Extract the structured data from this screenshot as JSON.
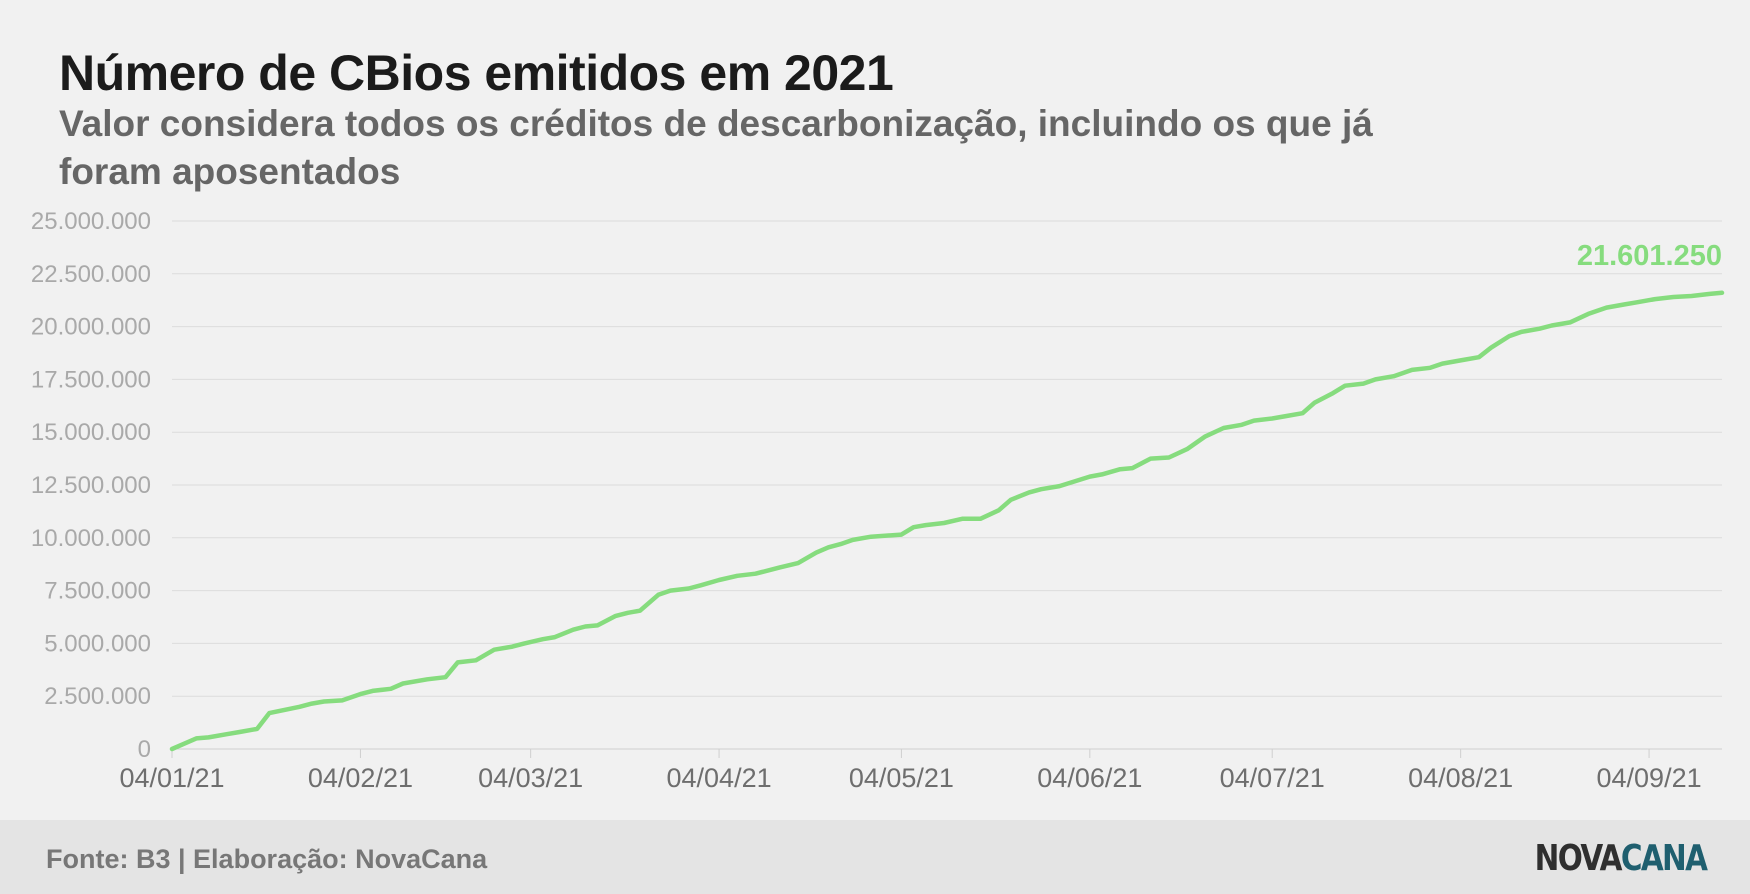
{
  "header": {
    "title": "Número de CBios emitidos em 2021",
    "subtitle": "Valor considera todos os créditos de descarbonização, incluindo os que já foram aposentados"
  },
  "footer": {
    "source": "Fonte: B3 | Elaboração: NovaCana",
    "logo_part1": "NOVA",
    "logo_part2": "CANA"
  },
  "colors": {
    "line": "#86dc7e",
    "grid": "#dcdcdc",
    "logo_nova": "#2f2f2f",
    "logo_cana": "#1f5f6f"
  },
  "chart_data": {
    "type": "line",
    "title": "Número de CBios emitidos em 2021",
    "xlabel": "",
    "ylabel": "",
    "ylim": [
      0,
      25000000
    ],
    "yticks": [
      0,
      2500000,
      5000000,
      7500000,
      10000000,
      12500000,
      15000000,
      17500000,
      20000000,
      22500000,
      25000000
    ],
    "ytick_labels": [
      "0",
      "2.500.000",
      "5.000.000",
      "7.500.000",
      "10.000.000",
      "12.500.000",
      "15.000.000",
      "17.500.000",
      "20.000.000",
      "22.500.000",
      "25.000.000"
    ],
    "xlim": [
      "2021-01-04",
      "2021-09-16"
    ],
    "xticks": [
      "2021-01-04",
      "2021-02-04",
      "2021-03-04",
      "2021-04-04",
      "2021-05-04",
      "2021-06-04",
      "2021-07-04",
      "2021-08-04",
      "2021-09-04"
    ],
    "xtick_labels": [
      "04/01/21",
      "04/02/21",
      "04/03/21",
      "04/04/21",
      "04/05/21",
      "04/06/21",
      "04/07/21",
      "04/08/21",
      "04/09/21"
    ],
    "grid": true,
    "end_label": "21.601.250",
    "series": [
      {
        "x": [
          "2021-01-04",
          "2021-01-06",
          "2021-01-08",
          "2021-01-10",
          "2021-01-13",
          "2021-01-15",
          "2021-01-18",
          "2021-01-20",
          "2021-01-25",
          "2021-01-27",
          "2021-01-29",
          "2021-02-01",
          "2021-02-04",
          "2021-02-06",
          "2021-02-09",
          "2021-02-11",
          "2021-02-15",
          "2021-02-18",
          "2021-02-20",
          "2021-02-23",
          "2021-02-26",
          "2021-03-01",
          "2021-03-03",
          "2021-03-06",
          "2021-03-08",
          "2021-03-11",
          "2021-03-13",
          "2021-03-15",
          "2021-03-18",
          "2021-03-20",
          "2021-03-22",
          "2021-03-25",
          "2021-03-27",
          "2021-03-30",
          "2021-04-01",
          "2021-04-04",
          "2021-04-07",
          "2021-04-10",
          "2021-04-14",
          "2021-04-17",
          "2021-04-20",
          "2021-04-22",
          "2021-04-24",
          "2021-04-26",
          "2021-04-29",
          "2021-05-04",
          "2021-05-06",
          "2021-05-08",
          "2021-05-11",
          "2021-05-14",
          "2021-05-17",
          "2021-05-20",
          "2021-05-22",
          "2021-05-25",
          "2021-05-27",
          "2021-05-30",
          "2021-06-04",
          "2021-06-06",
          "2021-06-09",
          "2021-06-11",
          "2021-06-14",
          "2021-06-17",
          "2021-06-20",
          "2021-06-23",
          "2021-06-26",
          "2021-06-29",
          "2021-07-01",
          "2021-07-04",
          "2021-07-06",
          "2021-07-09",
          "2021-07-11",
          "2021-07-14",
          "2021-07-16",
          "2021-07-19",
          "2021-07-21",
          "2021-07-24",
          "2021-07-27",
          "2021-07-30",
          "2021-08-01",
          "2021-08-04",
          "2021-08-07",
          "2021-08-09",
          "2021-08-12",
          "2021-08-14",
          "2021-08-17",
          "2021-08-19",
          "2021-08-22",
          "2021-08-25",
          "2021-08-28",
          "2021-08-31",
          "2021-09-02",
          "2021-09-05",
          "2021-09-08",
          "2021-09-11",
          "2021-09-14",
          "2021-09-16"
        ],
        "values": [
          0,
          250000,
          500000,
          550000,
          700000,
          800000,
          950000,
          1700000,
          2000000,
          2150000,
          2250000,
          2300000,
          2600000,
          2750000,
          2850000,
          3100000,
          3300000,
          3400000,
          4100000,
          4200000,
          4700000,
          4850000,
          5000000,
          5200000,
          5300000,
          5650000,
          5800000,
          5850000,
          6300000,
          6450000,
          6550000,
          7300000,
          7500000,
          7600000,
          7750000,
          8000000,
          8200000,
          8300000,
          8600000,
          8800000,
          9300000,
          9550000,
          9700000,
          9900000,
          10050000,
          10150000,
          10500000,
          10600000,
          10700000,
          10900000,
          10900000,
          11300000,
          11800000,
          12150000,
          12300000,
          12450000,
          12900000,
          13000000,
          13250000,
          13300000,
          13750000,
          13800000,
          14200000,
          14800000,
          15200000,
          15350000,
          15550000,
          15650000,
          15750000,
          15900000,
          16400000,
          16850000,
          17200000,
          17300000,
          17500000,
          17650000,
          17950000,
          18050000,
          18250000,
          18400000,
          18550000,
          19000000,
          19550000,
          19750000,
          19900000,
          20050000,
          20200000,
          20600000,
          20900000,
          21050000,
          21150000,
          21300000,
          21400000,
          21450000,
          21550000,
          21601250
        ]
      }
    ]
  }
}
